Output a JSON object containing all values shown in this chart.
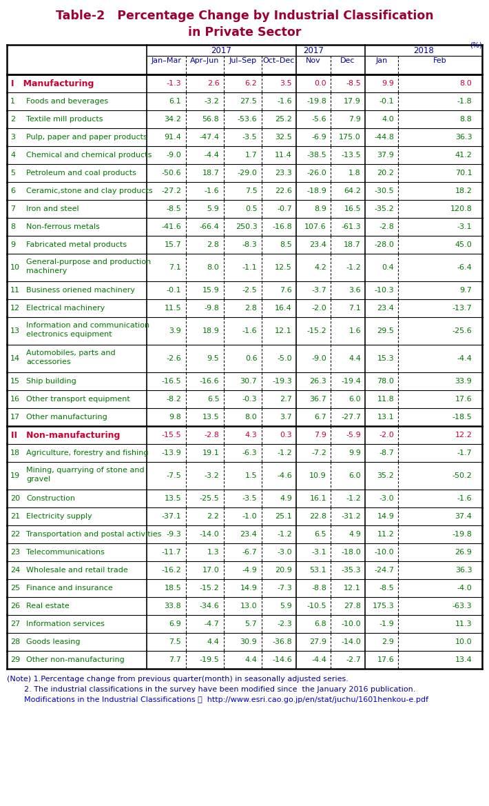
{
  "title_line1": "Table-2   Percentage Change by Industrial Classification",
  "title_line2": "in Private Sector",
  "title_color": "#990033",
  "percent_label": "(%)",
  "header_color": "#000099",
  "sub_headers": [
    "Jan–Mar",
    "Apr–Jun",
    "Jul–Sep",
    "Oct–Dec",
    "Nov",
    "Dec",
    "Jan",
    "Feb"
  ],
  "rows": [
    {
      "label": "Manufacturing",
      "num": "I",
      "category": true,
      "label_color": "#cc0033",
      "data_color": "#cc0033",
      "values": [
        "-1.3",
        "2.6",
        "6.2",
        "3.5",
        "0.0",
        "-8.5",
        "9.9",
        "8.0"
      ],
      "thick_top": true,
      "multiline": false
    },
    {
      "label": "Foods and beverages",
      "num": "1",
      "category": false,
      "label_color": "#007700",
      "data_color": "#007700",
      "values": [
        "6.1",
        "-3.2",
        "27.5",
        "-1.6",
        "-19.8",
        "17.9",
        "-0.1",
        "-1.8"
      ],
      "thick_top": false,
      "multiline": false
    },
    {
      "label": "Textile mill products",
      "num": "2",
      "category": false,
      "label_color": "#007700",
      "data_color": "#007700",
      "values": [
        "34.2",
        "56.8",
        "-53.6",
        "25.2",
        "-5.6",
        "7.9",
        "4.0",
        "8.8"
      ],
      "thick_top": false,
      "multiline": false
    },
    {
      "label": "Pulp, paper and paper products",
      "num": "3",
      "category": false,
      "label_color": "#007700",
      "data_color": "#007700",
      "values": [
        "91.4",
        "-47.4",
        "-3.5",
        "32.5",
        "-6.9",
        "175.0",
        "-44.8",
        "36.3"
      ],
      "thick_top": false,
      "multiline": false
    },
    {
      "label": "Chemical and chemical products",
      "num": "4",
      "category": false,
      "label_color": "#007700",
      "data_color": "#007700",
      "values": [
        "-9.0",
        "-4.4",
        "1.7",
        "11.4",
        "-38.5",
        "-13.5",
        "37.9",
        "41.2"
      ],
      "thick_top": false,
      "multiline": false
    },
    {
      "label": "Petroleum and coal products",
      "num": "5",
      "category": false,
      "label_color": "#007700",
      "data_color": "#007700",
      "values": [
        "-50.6",
        "18.7",
        "-29.0",
        "23.3",
        "-26.0",
        "1.8",
        "20.2",
        "70.1"
      ],
      "thick_top": false,
      "multiline": false
    },
    {
      "label": "Ceramic,stone and clay products",
      "num": "6",
      "category": false,
      "label_color": "#007700",
      "data_color": "#007700",
      "values": [
        "-27.2",
        "-1.6",
        "7.5",
        "22.6",
        "-18.9",
        "64.2",
        "-30.5",
        "18.2"
      ],
      "thick_top": false,
      "multiline": false
    },
    {
      "label": "Iron and steel",
      "num": "7",
      "category": false,
      "label_color": "#007700",
      "data_color": "#007700",
      "values": [
        "-8.5",
        "5.9",
        "0.5",
        "-0.7",
        "8.9",
        "16.5",
        "-35.2",
        "120.8"
      ],
      "thick_top": false,
      "multiline": false
    },
    {
      "label": "Non-ferrous metals",
      "num": "8",
      "category": false,
      "label_color": "#007700",
      "data_color": "#007700",
      "values": [
        "-41.6",
        "-66.4",
        "250.3",
        "-16.8",
        "107.6",
        "-61.3",
        "-2.8",
        "-3.1"
      ],
      "thick_top": false,
      "multiline": false
    },
    {
      "label": "Fabricated metal products",
      "num": "9",
      "category": false,
      "label_color": "#007700",
      "data_color": "#007700",
      "values": [
        "15.7",
        "2.8",
        "-8.3",
        "8.5",
        "23.4",
        "18.7",
        "-28.0",
        "45.0"
      ],
      "thick_top": false,
      "multiline": false
    },
    {
      "label": "General-purpose and production\nmachinery",
      "num": "10",
      "category": false,
      "label_color": "#007700",
      "data_color": "#007700",
      "values": [
        "7.1",
        "8.0",
        "-1.1",
        "12.5",
        "4.2",
        "-1.2",
        "0.4",
        "-6.4"
      ],
      "thick_top": false,
      "multiline": true
    },
    {
      "label": "Business oriened machinery",
      "num": "11",
      "category": false,
      "label_color": "#007700",
      "data_color": "#007700",
      "values": [
        "-0.1",
        "15.9",
        "-2.5",
        "7.6",
        "-3.7",
        "3.6",
        "-10.3",
        "9.7"
      ],
      "thick_top": false,
      "multiline": false
    },
    {
      "label": "Electrical machinery",
      "num": "12",
      "category": false,
      "label_color": "#007700",
      "data_color": "#007700",
      "values": [
        "11.5",
        "-9.8",
        "2.8",
        "16.4",
        "-2.0",
        "7.1",
        "23.4",
        "-13.7"
      ],
      "thick_top": false,
      "multiline": false
    },
    {
      "label": "Information and communication\nelectronics equipment",
      "num": "13",
      "category": false,
      "label_color": "#007700",
      "data_color": "#007700",
      "values": [
        "3.9",
        "18.9",
        "-1.6",
        "12.1",
        "-15.2",
        "1.6",
        "29.5",
        "-25.6"
      ],
      "thick_top": false,
      "multiline": true
    },
    {
      "label": "Automobiles, parts and\naccessories",
      "num": "14",
      "category": false,
      "label_color": "#007700",
      "data_color": "#007700",
      "values": [
        "-2.6",
        "9.5",
        "0.6",
        "-5.0",
        "-9.0",
        "4.4",
        "15.3",
        "-4.4"
      ],
      "thick_top": false,
      "multiline": true
    },
    {
      "label": "Ship building",
      "num": "15",
      "category": false,
      "label_color": "#007700",
      "data_color": "#007700",
      "values": [
        "-16.5",
        "-16.6",
        "30.7",
        "-19.3",
        "26.3",
        "-19.4",
        "78.0",
        "33.9"
      ],
      "thick_top": false,
      "multiline": false
    },
    {
      "label": "Other transport equipment",
      "num": "16",
      "category": false,
      "label_color": "#007700",
      "data_color": "#007700",
      "values": [
        "-8.2",
        "6.5",
        "-0.3",
        "2.7",
        "36.7",
        "6.0",
        "11.8",
        "17.6"
      ],
      "thick_top": false,
      "multiline": false
    },
    {
      "label": "Other manufacturing",
      "num": "17",
      "category": false,
      "label_color": "#007700",
      "data_color": "#007700",
      "values": [
        "9.8",
        "13.5",
        "8.0",
        "3.7",
        "6.7",
        "-27.7",
        "13.1",
        "-18.5"
      ],
      "thick_top": false,
      "multiline": false
    },
    {
      "label": "Non-manufacturing",
      "num": "II",
      "category": true,
      "label_color": "#cc0033",
      "data_color": "#cc0033",
      "values": [
        "-15.5",
        "-2.8",
        "4.3",
        "0.3",
        "7.9",
        "-5.9",
        "-2.0",
        "12.2"
      ],
      "thick_top": true,
      "multiline": false
    },
    {
      "label": "Agriculture, forestry and fishing",
      "num": "18",
      "category": false,
      "label_color": "#007700",
      "data_color": "#007700",
      "values": [
        "-13.9",
        "19.1",
        "-6.3",
        "-1.2",
        "-7.2",
        "9.9",
        "-8.7",
        "-1.7"
      ],
      "thick_top": false,
      "multiline": false
    },
    {
      "label": "Mining, quarrying of stone and\ngravel",
      "num": "19",
      "category": false,
      "label_color": "#007700",
      "data_color": "#007700",
      "values": [
        "-7.5",
        "-3.2",
        "1.5",
        "-4.6",
        "10.9",
        "6.0",
        "35.2",
        "-50.2"
      ],
      "thick_top": false,
      "multiline": true
    },
    {
      "label": "Construction",
      "num": "20",
      "category": false,
      "label_color": "#007700",
      "data_color": "#007700",
      "values": [
        "13.5",
        "-25.5",
        "-3.5",
        "4.9",
        "16.1",
        "-1.2",
        "-3.0",
        "-1.6"
      ],
      "thick_top": false,
      "multiline": false
    },
    {
      "label": "Electricity supply",
      "num": "21",
      "category": false,
      "label_color": "#007700",
      "data_color": "#007700",
      "values": [
        "-37.1",
        "2.2",
        "-1.0",
        "25.1",
        "22.8",
        "-31.2",
        "14.9",
        "37.4"
      ],
      "thick_top": false,
      "multiline": false
    },
    {
      "label": "Transportation and postal activities",
      "num": "22",
      "category": false,
      "label_color": "#007700",
      "data_color": "#007700",
      "values": [
        "-9.3",
        "-14.0",
        "23.4",
        "-1.2",
        "6.5",
        "4.9",
        "11.2",
        "-19.8"
      ],
      "thick_top": false,
      "multiline": false
    },
    {
      "label": "Telecommunications",
      "num": "23",
      "category": false,
      "label_color": "#007700",
      "data_color": "#007700",
      "values": [
        "-11.7",
        "1.3",
        "-6.7",
        "-3.0",
        "-3.1",
        "-18.0",
        "-10.0",
        "26.9"
      ],
      "thick_top": false,
      "multiline": false
    },
    {
      "label": "Wholesale and retail trade",
      "num": "24",
      "category": false,
      "label_color": "#007700",
      "data_color": "#007700",
      "values": [
        "-16.2",
        "17.0",
        "-4.9",
        "20.9",
        "53.1",
        "-35.3",
        "-24.7",
        "36.3"
      ],
      "thick_top": false,
      "multiline": false
    },
    {
      "label": "Finance and insurance",
      "num": "25",
      "category": false,
      "label_color": "#007700",
      "data_color": "#007700",
      "values": [
        "18.5",
        "-15.2",
        "14.9",
        "-7.3",
        "-8.8",
        "12.1",
        "-8.5",
        "-4.0"
      ],
      "thick_top": false,
      "multiline": false
    },
    {
      "label": "Real estate",
      "num": "26",
      "category": false,
      "label_color": "#007700",
      "data_color": "#007700",
      "values": [
        "33.8",
        "-34.6",
        "13.0",
        "5.9",
        "-10.5",
        "27.8",
        "175.3",
        "-63.3"
      ],
      "thick_top": false,
      "multiline": false
    },
    {
      "label": "Information services",
      "num": "27",
      "category": false,
      "label_color": "#007700",
      "data_color": "#007700",
      "values": [
        "6.9",
        "-4.7",
        "5.7",
        "-2.3",
        "6.8",
        "-10.0",
        "-1.9",
        "11.3"
      ],
      "thick_top": false,
      "multiline": false
    },
    {
      "label": "Goods leasing",
      "num": "28",
      "category": false,
      "label_color": "#007700",
      "data_color": "#007700",
      "values": [
        "7.5",
        "4.4",
        "30.9",
        "-36.8",
        "27.9",
        "-14.0",
        "2.9",
        "10.0"
      ],
      "thick_top": false,
      "multiline": false
    },
    {
      "label": "Other non-manufacturing",
      "num": "29",
      "category": false,
      "label_color": "#007700",
      "data_color": "#007700",
      "values": [
        "7.7",
        "-19.5",
        "4.4",
        "-14.6",
        "-4.4",
        "-2.7",
        "17.6",
        "13.4"
      ],
      "thick_top": false,
      "multiline": false
    }
  ],
  "footer_lines": [
    "(Note) 1.Percentage change from previous quarter(month) in seasonally adjusted series.",
    "2. The industrial classifications in the survey have been modified since  the January 2016 publication.",
    "Modifications in the Industrial Classifications ；  http://www.esri.cao.go.jp/en/stat/juchu/1601henkou-e.pdf"
  ],
  "footer_color": "#000099",
  "footer_url_color": "#0000cc",
  "footer_url": "http://www.esri.cao.go.jp/en/stat/juchu/1601henkou-e.pdf",
  "footer_url_prefix": "Modifications in the Industrial Classifications ；  "
}
